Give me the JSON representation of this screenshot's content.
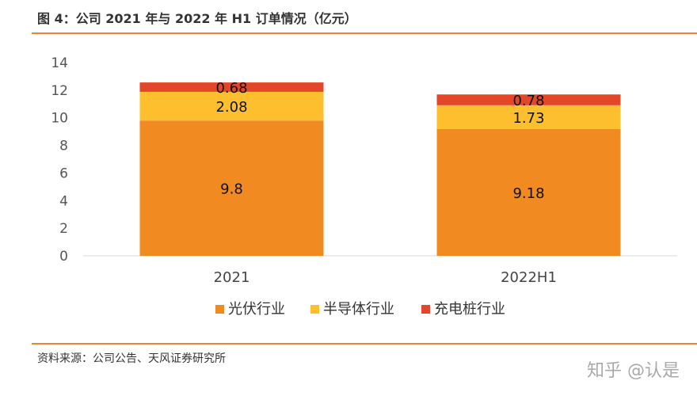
{
  "header": {
    "title": "图 4：公司 2021 年与 2022 年 H1 订单情况（亿元）"
  },
  "footer": {
    "source": "资料来源：公司公告、天风证券研究所",
    "watermark": "知乎 @认是"
  },
  "chart_data": {
    "type": "bar",
    "stacked": true,
    "title": "图 4：公司 2021 年与 2022 年 H1 订单情况（亿元）",
    "xlabel": "",
    "ylabel": "",
    "categories": [
      "2021",
      "2022H1"
    ],
    "ylim": [
      0,
      14
    ],
    "yticks": [
      0,
      2,
      4,
      6,
      8,
      10,
      12,
      14
    ],
    "grid": false,
    "legend_position": "bottom",
    "series": [
      {
        "name": "光伏行业",
        "values": [
          9.8,
          9.18
        ],
        "labels": [
          "9.8",
          "9.18"
        ],
        "color": "#f28a22"
      },
      {
        "name": "半导体行业",
        "values": [
          2.08,
          1.73
        ],
        "labels": [
          "2.08",
          "1.73"
        ],
        "color": "#fdbf2d"
      },
      {
        "name": "充电桩行业",
        "values": [
          0.68,
          0.78
        ],
        "labels": [
          "0.68",
          "0.78"
        ],
        "color": "#e2472a"
      }
    ]
  }
}
